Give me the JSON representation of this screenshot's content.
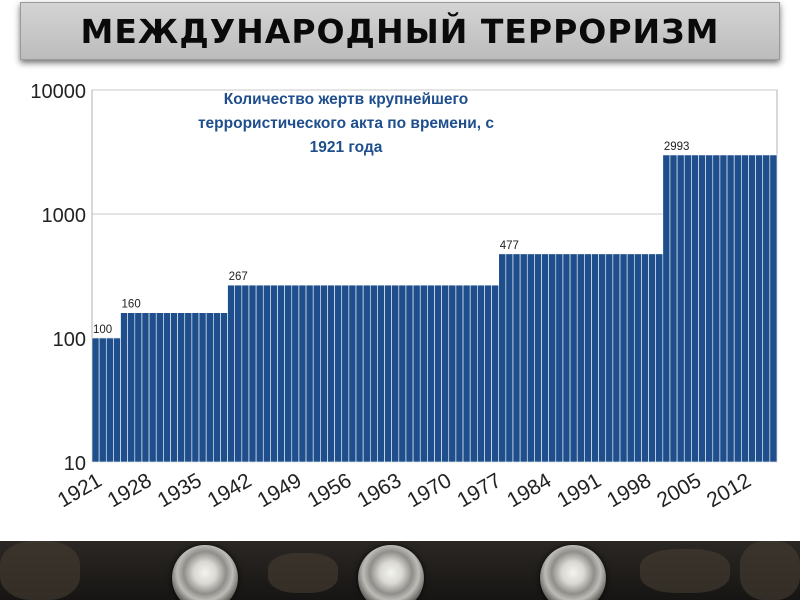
{
  "header": {
    "title": "МЕЖДУНАРОДНЫЙ ТЕРРОРИЗМ"
  },
  "chart_data": {
    "type": "bar",
    "title": "Количество жертв крупнейшего террористического акта по времени, с 1921 года",
    "title_lines": [
      "Количество жертв крупнейшего",
      "террористического акта по времени, с",
      "1921 года"
    ],
    "xlabel": "",
    "ylabel": "",
    "y_scale": "log",
    "ylim": [
      10,
      10000
    ],
    "y_ticks": [
      10,
      100,
      1000,
      10000
    ],
    "x_range": [
      1921,
      2016
    ],
    "x_ticks": [
      1921,
      1928,
      1935,
      1942,
      1949,
      1956,
      1963,
      1970,
      1977,
      1984,
      1991,
      1998,
      2005,
      2012
    ],
    "grid": true,
    "legend": "none",
    "series": [
      {
        "steps": [
          {
            "from": 1921,
            "to": 1924,
            "value": 100
          },
          {
            "from": 1925,
            "to": 1939,
            "value": 160
          },
          {
            "from": 1940,
            "to": 1977,
            "value": 267
          },
          {
            "from": 1978,
            "to": 2000,
            "value": 477
          },
          {
            "from": 2001,
            "to": 2016,
            "value": 2993
          }
        ]
      }
    ],
    "data_labels": [
      {
        "year": 1921,
        "value": 100,
        "text": "100"
      },
      {
        "year": 1925,
        "value": 160,
        "text": "160"
      },
      {
        "year": 1940,
        "value": 267,
        "text": "267"
      },
      {
        "year": 1978,
        "value": 477,
        "text": "477"
      },
      {
        "year": 2001,
        "value": 2993,
        "text": "2993"
      }
    ],
    "bar_color": "#1f4e8c"
  }
}
